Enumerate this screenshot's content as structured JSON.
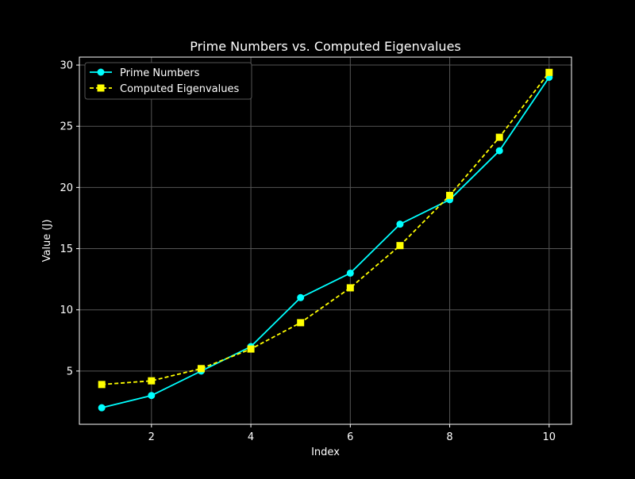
{
  "chart_data": {
    "type": "line",
    "title": "Prime Numbers vs. Computed Eigenvalues",
    "xlabel": "Index",
    "ylabel": "Value (J)",
    "x": [
      1,
      2,
      3,
      4,
      5,
      6,
      7,
      8,
      9,
      10
    ],
    "xlim": [
      0.55,
      10.45
    ],
    "ylim": [
      0.65,
      30.65
    ],
    "xticks": [
      2,
      4,
      6,
      8,
      10
    ],
    "yticks": [
      5,
      10,
      15,
      20,
      25,
      30
    ],
    "grid": true,
    "legend_position": "upper-left",
    "background": "#000000",
    "grid_color": "#555555",
    "series": [
      {
        "name": "Prime Numbers",
        "values": [
          2,
          3,
          5,
          7,
          11,
          13,
          17,
          19,
          23,
          29
        ],
        "color": "#00ffff",
        "marker": "circle",
        "linestyle": "solid"
      },
      {
        "name": "Computed Eigenvalues",
        "values": [
          3.9,
          4.2,
          5.2,
          6.8,
          8.95,
          11.8,
          15.25,
          19.35,
          24.1,
          29.4
        ],
        "color": "#ffff00",
        "marker": "square",
        "linestyle": "dashed"
      }
    ]
  }
}
